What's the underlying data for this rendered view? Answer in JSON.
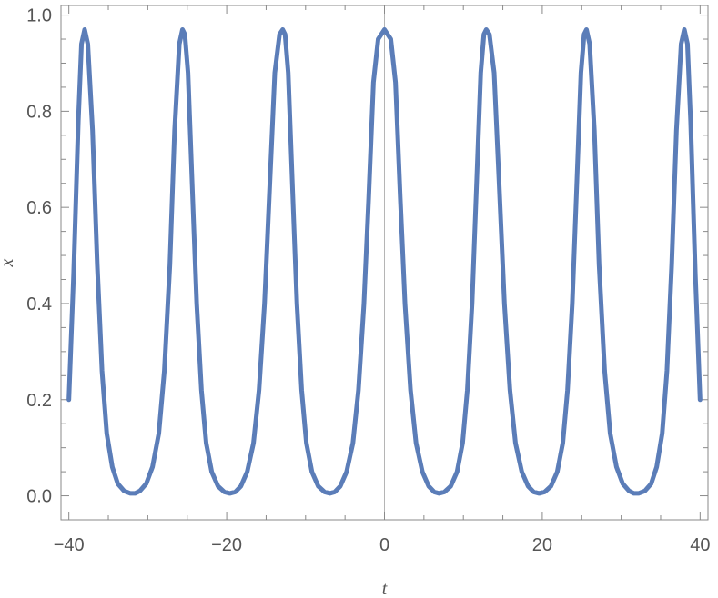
{
  "chart_data": {
    "type": "line",
    "title": "",
    "xlabel": "t",
    "ylabel": "x",
    "xlim": [
      -41,
      41
    ],
    "ylim": [
      -0.05,
      1.02
    ],
    "x_ticks": [
      -40,
      -20,
      0,
      20,
      40
    ],
    "x_tick_labels": [
      "−40",
      "−20",
      "0",
      "20",
      "40"
    ],
    "y_ticks": [
      0.0,
      0.2,
      0.4,
      0.6,
      0.8,
      1.0
    ],
    "y_tick_labels": [
      "0.0",
      "0.2",
      "0.4",
      "0.6",
      "0.8",
      "1.0"
    ],
    "grid": false,
    "legend": "none",
    "series": [
      {
        "color": "#5B7DB8",
        "x": [
          -40,
          -39.4,
          -38.8,
          -38.4,
          -38.0,
          -37.6,
          -37.0,
          -36.4,
          -35.8,
          -35.2,
          -34.5,
          -33.8,
          -33.0,
          -32.2,
          -31.6,
          -31.0,
          -30.2,
          -29.4,
          -28.6,
          -27.9,
          -27.2,
          -26.6,
          -26.0,
          -25.6,
          -25.3,
          -24.9,
          -24.4,
          -23.8,
          -23.2,
          -22.6,
          -21.9,
          -21.1,
          -20.3,
          -19.6,
          -18.9,
          -18.2,
          -17.4,
          -16.6,
          -15.9,
          -15.2,
          -14.5,
          -13.9,
          -13.3,
          -12.9,
          -12.6,
          -12.2,
          -11.7,
          -11.1,
          -10.5,
          -9.9,
          -9.2,
          -8.4,
          -7.6,
          -6.9,
          -6.3,
          -5.6,
          -4.8,
          -4.0,
          -3.3,
          -2.6,
          -2.0,
          -1.4,
          -0.8,
          -0.4,
          0,
          0.4,
          0.8,
          1.4,
          2.0,
          2.6,
          3.3,
          4.0,
          4.8,
          5.6,
          6.3,
          6.9,
          7.6,
          8.4,
          9.2,
          9.9,
          10.5,
          11.1,
          11.7,
          12.2,
          12.6,
          12.9,
          13.3,
          13.9,
          14.5,
          15.2,
          15.9,
          16.6,
          17.4,
          18.2,
          18.9,
          19.6,
          20.3,
          21.1,
          21.9,
          22.6,
          23.2,
          23.8,
          24.4,
          24.9,
          25.3,
          25.6,
          26.0,
          26.6,
          27.2,
          27.9,
          28.6,
          29.4,
          30.2,
          31.0,
          31.6,
          32.2,
          33.0,
          33.8,
          34.5,
          35.2,
          35.8,
          36.4,
          37.0,
          37.6,
          38.0,
          38.4,
          38.8,
          39.4,
          40
        ],
        "y": [
          0.2,
          0.46,
          0.78,
          0.94,
          0.97,
          0.94,
          0.76,
          0.48,
          0.26,
          0.13,
          0.06,
          0.025,
          0.01,
          0.005,
          0.005,
          0.01,
          0.025,
          0.06,
          0.13,
          0.26,
          0.48,
          0.76,
          0.94,
          0.97,
          0.96,
          0.88,
          0.66,
          0.4,
          0.22,
          0.11,
          0.05,
          0.02,
          0.008,
          0.005,
          0.008,
          0.02,
          0.05,
          0.11,
          0.22,
          0.4,
          0.66,
          0.88,
          0.96,
          0.97,
          0.96,
          0.88,
          0.66,
          0.4,
          0.22,
          0.11,
          0.05,
          0.02,
          0.008,
          0.005,
          0.008,
          0.02,
          0.05,
          0.11,
          0.22,
          0.4,
          0.62,
          0.86,
          0.95,
          0.96,
          0.97,
          0.96,
          0.95,
          0.86,
          0.62,
          0.4,
          0.22,
          0.11,
          0.05,
          0.02,
          0.008,
          0.005,
          0.008,
          0.02,
          0.05,
          0.11,
          0.22,
          0.4,
          0.66,
          0.88,
          0.96,
          0.97,
          0.96,
          0.88,
          0.66,
          0.4,
          0.22,
          0.11,
          0.05,
          0.02,
          0.008,
          0.005,
          0.008,
          0.02,
          0.05,
          0.11,
          0.22,
          0.4,
          0.66,
          0.88,
          0.96,
          0.97,
          0.94,
          0.76,
          0.48,
          0.26,
          0.13,
          0.06,
          0.025,
          0.01,
          0.005,
          0.005,
          0.01,
          0.025,
          0.06,
          0.13,
          0.26,
          0.48,
          0.76,
          0.94,
          0.97,
          0.94,
          0.78,
          0.46,
          0.2
        ]
      }
    ]
  }
}
